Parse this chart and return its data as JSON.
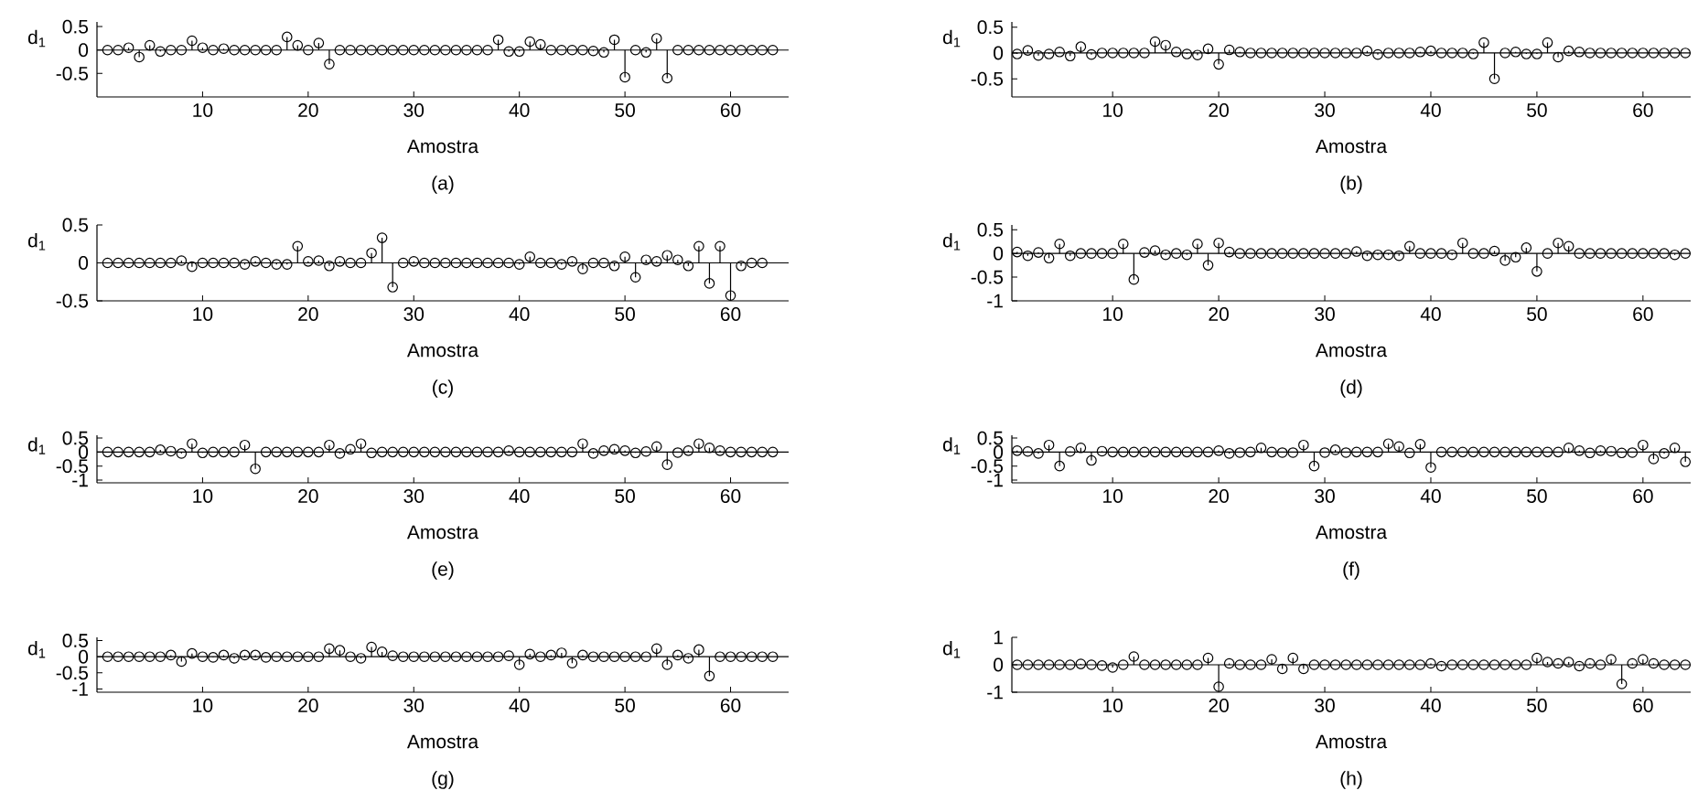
{
  "chart_data": [
    {
      "type": "lollipop",
      "xlabel": "Amostra",
      "ylabel": "d$_{1}$",
      "annotations": [
        "(a)"
      ],
      "marker": "circle",
      "color": "#000000",
      "xlim": [
        0,
        65.5
      ],
      "ylim": [
        -1,
        0.6
      ],
      "xticks": [
        10,
        20,
        30,
        40,
        50,
        60
      ],
      "yticks": [
        -0.5,
        0,
        0.5
      ],
      "ref_lines": [
        {
          "axis": "y",
          "value": 0
        }
      ],
      "x": [
        1,
        2,
        3,
        4,
        5,
        6,
        7,
        8,
        9,
        10,
        11,
        12,
        13,
        14,
        15,
        16,
        17,
        18,
        19,
        20,
        21,
        22,
        23,
        24,
        25,
        26,
        27,
        28,
        29,
        30,
        31,
        32,
        33,
        34,
        35,
        36,
        37,
        38,
        39,
        40,
        41,
        42,
        43,
        44,
        45,
        46,
        47,
        48,
        49,
        50,
        51,
        52,
        53,
        54,
        55,
        56,
        57,
        58,
        59,
        60,
        61,
        62,
        63,
        64
      ],
      "values": [
        0,
        0,
        0.05,
        -0.15,
        0.1,
        -0.03,
        0,
        0,
        0.2,
        0.05,
        0,
        0.03,
        0,
        0,
        0,
        0,
        0,
        0.28,
        0.1,
        0,
        0.15,
        -0.3,
        0,
        0,
        0,
        0,
        0,
        0,
        0,
        0,
        0,
        0,
        0,
        0,
        0,
        0,
        0,
        0.22,
        -0.03,
        -0.03,
        0.18,
        0.12,
        0,
        0,
        0,
        0,
        -0.02,
        -0.05,
        0.22,
        -0.58,
        0,
        -0.05,
        0.25,
        -0.6,
        0,
        0,
        0,
        0,
        0,
        0,
        0,
        0,
        0,
        0
      ]
    },
    {
      "type": "lollipop",
      "xlabel": "Amostra",
      "ylabel": "d$_{1}$",
      "annotations": [
        "(b)"
      ],
      "marker": "circle",
      "color": "#000000",
      "xlim": [
        0.5,
        64.5
      ],
      "ylim": [
        -0.85,
        0.6
      ],
      "xticks": [
        10,
        20,
        30,
        40,
        50,
        60
      ],
      "yticks": [
        -0.5,
        0,
        0.5
      ],
      "ref_lines": [
        {
          "axis": "y",
          "value": 0
        }
      ],
      "x": [
        1,
        2,
        3,
        4,
        5,
        6,
        7,
        8,
        9,
        10,
        11,
        12,
        13,
        14,
        15,
        16,
        17,
        18,
        19,
        20,
        21,
        22,
        23,
        24,
        25,
        26,
        27,
        28,
        29,
        30,
        31,
        32,
        33,
        34,
        35,
        36,
        37,
        38,
        39,
        40,
        41,
        42,
        43,
        44,
        45,
        46,
        47,
        48,
        49,
        50,
        51,
        52,
        53,
        54,
        55,
        56,
        57,
        58,
        59,
        60,
        61,
        62,
        63,
        64
      ],
      "values": [
        -0.02,
        0.05,
        -0.05,
        -0.02,
        0.02,
        -0.06,
        0.12,
        -0.03,
        0,
        0,
        0,
        0,
        0,
        0.22,
        0.15,
        0.02,
        -0.02,
        -0.04,
        0.08,
        -0.22,
        0.06,
        0.02,
        0,
        0,
        0,
        0,
        0,
        0,
        0,
        0,
        0,
        0,
        0,
        0.04,
        -0.03,
        0,
        0,
        0,
        0.02,
        0.04,
        0,
        0,
        0,
        -0.02,
        0.2,
        -0.5,
        0,
        0.02,
        -0.02,
        -0.02,
        0.2,
        -0.08,
        0.04,
        0.02,
        0,
        0,
        0,
        0,
        0,
        0,
        0,
        0,
        0,
        0
      ]
    },
    {
      "type": "lollipop",
      "xlabel": "Amostra",
      "ylabel": "d$_{1}$",
      "annotations": [
        "(c)"
      ],
      "marker": "circle",
      "color": "#000000",
      "xlim": [
        0,
        65.5
      ],
      "ylim": [
        -0.5,
        0.5
      ],
      "xticks": [
        10,
        20,
        30,
        40,
        50,
        60
      ],
      "yticks": [
        -0.5,
        0,
        0.5
      ],
      "ref_lines": [
        {
          "axis": "y",
          "value": 0
        }
      ],
      "x": [
        1,
        2,
        3,
        4,
        5,
        6,
        7,
        8,
        9,
        10,
        11,
        12,
        13,
        14,
        15,
        16,
        17,
        18,
        19,
        20,
        21,
        22,
        23,
        24,
        25,
        26,
        27,
        28,
        29,
        30,
        31,
        32,
        33,
        34,
        35,
        36,
        37,
        38,
        39,
        40,
        41,
        42,
        43,
        44,
        45,
        46,
        47,
        48,
        49,
        50,
        51,
        52,
        53,
        54,
        55,
        56,
        57,
        58,
        59,
        60,
        61,
        62,
        63
      ],
      "values": [
        0,
        0,
        0,
        0,
        0,
        0,
        0,
        0.03,
        -0.05,
        0,
        0,
        0,
        0,
        -0.02,
        0.02,
        0,
        -0.02,
        -0.02,
        0.22,
        0.02,
        0.03,
        -0.04,
        0.02,
        0,
        0,
        0.13,
        0.33,
        -0.32,
        0,
        0.02,
        0,
        0,
        0,
        0,
        0,
        0,
        0,
        0,
        0,
        -0.02,
        0.08,
        0,
        0,
        -0.02,
        0.02,
        -0.08,
        0,
        0,
        -0.04,
        0.08,
        -0.19,
        0.04,
        0.02,
        0.1,
        0.04,
        -0.04,
        0.22,
        -0.27,
        0.22,
        -0.43,
        -0.04,
        0,
        0
      ]
    },
    {
      "type": "lollipop",
      "xlabel": "Amostra",
      "ylabel": "d$_{1}$",
      "annotations": [
        "(d)"
      ],
      "marker": "circle",
      "color": "#000000",
      "xlim": [
        0.5,
        64.5
      ],
      "ylim": [
        -1,
        0.6
      ],
      "xticks": [
        10,
        20,
        30,
        40,
        50,
        60
      ],
      "yticks": [
        -1,
        -0.5,
        0,
        0.5
      ],
      "ref_lines": [
        {
          "axis": "y",
          "value": 0
        }
      ],
      "x": [
        1,
        2,
        3,
        4,
        5,
        6,
        7,
        8,
        9,
        10,
        11,
        12,
        13,
        14,
        15,
        16,
        17,
        18,
        19,
        20,
        21,
        22,
        23,
        24,
        25,
        26,
        27,
        28,
        29,
        30,
        31,
        32,
        33,
        34,
        35,
        36,
        37,
        38,
        39,
        40,
        41,
        42,
        43,
        44,
        45,
        46,
        47,
        48,
        49,
        50,
        51,
        52,
        53,
        54,
        55,
        56,
        57,
        58,
        59,
        60,
        61,
        62,
        63,
        64
      ],
      "values": [
        0.03,
        -0.05,
        0.02,
        -0.1,
        0.2,
        -0.05,
        0,
        0,
        0,
        0,
        0.2,
        -0.55,
        0.02,
        0.06,
        -0.03,
        0,
        -0.03,
        0.2,
        -0.25,
        0.22,
        0.03,
        0,
        0,
        0,
        0,
        0,
        0,
        0,
        0,
        0,
        0,
        0,
        0.04,
        -0.05,
        -0.03,
        -0.03,
        -0.05,
        0.15,
        0,
        0,
        0,
        -0.03,
        0.22,
        0,
        0,
        0.05,
        -0.15,
        -0.08,
        0.12,
        -0.38,
        0,
        0.22,
        0.15,
        0,
        0,
        0,
        0,
        0,
        0,
        0,
        0,
        0,
        -0.03,
        0
      ]
    },
    {
      "type": "lollipop",
      "xlabel": "Amostra",
      "ylabel": "d$_{1}$",
      "annotations": [
        "(e)"
      ],
      "marker": "circle",
      "color": "#000000",
      "xlim": [
        0,
        65.5
      ],
      "ylim": [
        -1.1,
        0.6
      ],
      "xticks": [
        10,
        20,
        30,
        40,
        50,
        60
      ],
      "yticks": [
        -1,
        -0.5,
        0,
        0.5
      ],
      "ref_lines": [
        {
          "axis": "y",
          "value": 0
        }
      ],
      "x": [
        1,
        2,
        3,
        4,
        5,
        6,
        7,
        8,
        9,
        10,
        11,
        12,
        13,
        14,
        15,
        16,
        17,
        18,
        19,
        20,
        21,
        22,
        23,
        24,
        25,
        26,
        27,
        28,
        29,
        30,
        31,
        32,
        33,
        34,
        35,
        36,
        37,
        38,
        39,
        40,
        41,
        42,
        43,
        44,
        45,
        46,
        47,
        48,
        49,
        50,
        51,
        52,
        53,
        54,
        55,
        56,
        57,
        58,
        59,
        60,
        61,
        62,
        63,
        64
      ],
      "values": [
        0,
        0,
        0,
        0,
        0,
        0.08,
        0.03,
        -0.05,
        0.3,
        -0.03,
        0,
        0,
        0,
        0.25,
        -0.6,
        0,
        0,
        0,
        0,
        0,
        0,
        0.25,
        -0.05,
        0.1,
        0.3,
        -0.03,
        0,
        0,
        0,
        0,
        0,
        0,
        0,
        0,
        0,
        0,
        0,
        0,
        0.05,
        0,
        0,
        0,
        0,
        0,
        0,
        0.3,
        -0.05,
        0.05,
        0.1,
        0.05,
        -0.03,
        0.02,
        0.2,
        -0.45,
        -0.02,
        0.05,
        0.3,
        0.15,
        0.05,
        0,
        0,
        0,
        0,
        0
      ]
    },
    {
      "type": "lollipop",
      "xlabel": "Amostra",
      "ylabel": "d$_{1}$",
      "annotations": [
        "(f)"
      ],
      "marker": "circle",
      "color": "#000000",
      "xlim": [
        0.5,
        64.5
      ],
      "ylim": [
        -1.1,
        0.6
      ],
      "xticks": [
        10,
        20,
        30,
        40,
        50,
        60
      ],
      "yticks": [
        -1,
        -0.5,
        0,
        0.5
      ],
      "ref_lines": [
        {
          "axis": "y",
          "value": 0
        }
      ],
      "x": [
        1,
        2,
        3,
        4,
        5,
        6,
        7,
        8,
        9,
        10,
        11,
        12,
        13,
        14,
        15,
        16,
        17,
        18,
        19,
        20,
        21,
        22,
        23,
        24,
        25,
        26,
        27,
        28,
        29,
        30,
        31,
        32,
        33,
        34,
        35,
        36,
        37,
        38,
        39,
        40,
        41,
        42,
        43,
        44,
        45,
        46,
        47,
        48,
        49,
        50,
        51,
        52,
        53,
        54,
        55,
        56,
        57,
        58,
        59,
        60,
        61,
        62,
        63,
        64
      ],
      "values": [
        0.05,
        0.02,
        -0.05,
        0.25,
        -0.5,
        0.02,
        0.15,
        -0.3,
        0.03,
        0,
        0,
        0,
        0,
        0,
        0,
        0,
        0,
        0,
        0,
        0.05,
        -0.05,
        -0.02,
        0,
        0.15,
        0,
        -0.02,
        -0.02,
        0.25,
        -0.5,
        -0.02,
        0.08,
        -0.02,
        0,
        0,
        0,
        0.3,
        0.2,
        -0.03,
        0.28,
        -0.55,
        0,
        0,
        0,
        0,
        0,
        0,
        0,
        0,
        0,
        0,
        0,
        0,
        0.15,
        0.05,
        -0.03,
        0.05,
        0.03,
        -0.03,
        -0.02,
        0.25,
        -0.25,
        -0.05,
        0.15,
        -0.35
      ]
    },
    {
      "type": "lollipop",
      "xlabel": "Amostra",
      "ylabel": "d$_{1}$",
      "annotations": [
        "(g)"
      ],
      "marker": "circle",
      "color": "#000000",
      "xlim": [
        0,
        65.5
      ],
      "ylim": [
        -1.1,
        0.6
      ],
      "xticks": [
        10,
        20,
        30,
        40,
        50,
        60
      ],
      "yticks": [
        -1,
        -0.5,
        0,
        0.5
      ],
      "ref_lines": [
        {
          "axis": "y",
          "value": 0
        }
      ],
      "x": [
        1,
        2,
        3,
        4,
        5,
        6,
        7,
        8,
        9,
        10,
        11,
        12,
        13,
        14,
        15,
        16,
        17,
        18,
        19,
        20,
        21,
        22,
        23,
        24,
        25,
        26,
        27,
        28,
        29,
        30,
        31,
        32,
        33,
        34,
        35,
        36,
        37,
        38,
        39,
        40,
        41,
        42,
        43,
        44,
        45,
        46,
        47,
        48,
        49,
        50,
        51,
        52,
        53,
        54,
        55,
        56,
        57,
        58,
        59,
        60,
        61,
        62,
        63,
        64
      ],
      "values": [
        0,
        0,
        0,
        0,
        0,
        0,
        0.05,
        -0.15,
        0.1,
        0,
        -0.02,
        0.05,
        -0.05,
        0.05,
        0.05,
        -0.02,
        0,
        0,
        0,
        0,
        0,
        0.25,
        0.2,
        0,
        -0.05,
        0.3,
        0.15,
        0.03,
        0,
        0,
        0,
        0,
        0,
        0,
        0,
        0,
        0,
        0,
        0.03,
        -0.25,
        0.08,
        0,
        0.05,
        0.12,
        -0.2,
        0.05,
        0,
        0,
        0,
        0,
        0,
        0,
        0.25,
        -0.25,
        0.05,
        -0.05,
        0.22,
        -0.6,
        0,
        0,
        0,
        0,
        0,
        0
      ]
    },
    {
      "type": "lollipop",
      "xlabel": "Amostra",
      "ylabel": "d$_{1}$",
      "annotations": [
        "(h)"
      ],
      "marker": "circle",
      "color": "#000000",
      "xlim": [
        0.5,
        64.5
      ],
      "ylim": [
        -1,
        1
      ],
      "xticks": [
        10,
        20,
        30,
        40,
        50,
        60
      ],
      "yticks": [
        -1,
        0,
        1
      ],
      "ref_lines": [
        {
          "axis": "y",
          "value": 0
        }
      ],
      "x": [
        1,
        2,
        3,
        4,
        5,
        6,
        7,
        8,
        9,
        10,
        11,
        12,
        13,
        14,
        15,
        16,
        17,
        18,
        19,
        20,
        21,
        22,
        23,
        24,
        25,
        26,
        27,
        28,
        29,
        30,
        31,
        32,
        33,
        34,
        35,
        36,
        37,
        38,
        39,
        40,
        41,
        42,
        43,
        44,
        45,
        46,
        47,
        48,
        49,
        50,
        51,
        52,
        53,
        54,
        55,
        56,
        57,
        58,
        59,
        60,
        61,
        62,
        63,
        64
      ],
      "values": [
        0,
        0,
        0,
        0,
        0,
        0,
        0.03,
        0,
        -0.03,
        -0.1,
        0,
        0.3,
        0,
        0,
        0,
        0,
        0,
        0,
        0.25,
        -0.8,
        0.05,
        0,
        0,
        0,
        0.2,
        -0.15,
        0.25,
        -0.15,
        0,
        0,
        0,
        0,
        0,
        0,
        0,
        0,
        0,
        0,
        0,
        0.05,
        -0.05,
        0,
        0,
        0,
        0,
        0,
        0,
        0,
        0,
        0.25,
        0.1,
        0.05,
        0.1,
        -0.05,
        0.05,
        0,
        0.2,
        -0.7,
        0.05,
        0.2,
        0.05,
        0,
        0,
        0
      ]
    }
  ]
}
